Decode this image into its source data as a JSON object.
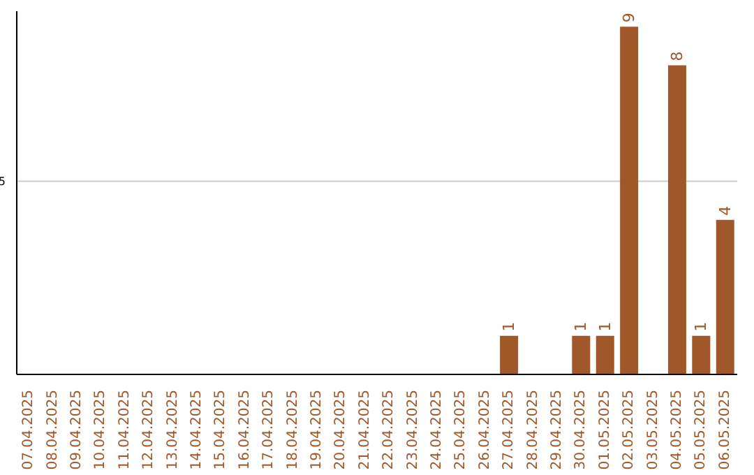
{
  "chart_data": {
    "type": "bar",
    "categories": [
      "07.04.2025",
      "08.04.2025",
      "09.04.2025",
      "10.04.2025",
      "11.04.2025",
      "12.04.2025",
      "13.04.2025",
      "14.04.2025",
      "15.04.2025",
      "16.04.2025",
      "17.04.2025",
      "18.04.2025",
      "19.04.2025",
      "20.04.2025",
      "21.04.2025",
      "22.04.2025",
      "23.04.2025",
      "24.04.2025",
      "25.04.2025",
      "26.04.2025",
      "27.04.2025",
      "28.04.2025",
      "29.04.2025",
      "30.04.2025",
      "01.05.2025",
      "02.05.2025",
      "03.05.2025",
      "04.05.2025",
      "05.05.2025",
      "06.05.2025"
    ],
    "values": [
      null,
      null,
      null,
      null,
      null,
      null,
      null,
      null,
      null,
      null,
      null,
      null,
      null,
      null,
      null,
      null,
      null,
      null,
      null,
      null,
      1,
      null,
      null,
      1,
      1,
      9,
      null,
      8,
      1,
      4
    ],
    "color": "#a0582a",
    "ylim": [
      0,
      9.4
    ],
    "yticks": [
      5
    ],
    "grid": "y",
    "data_labels": true
  }
}
